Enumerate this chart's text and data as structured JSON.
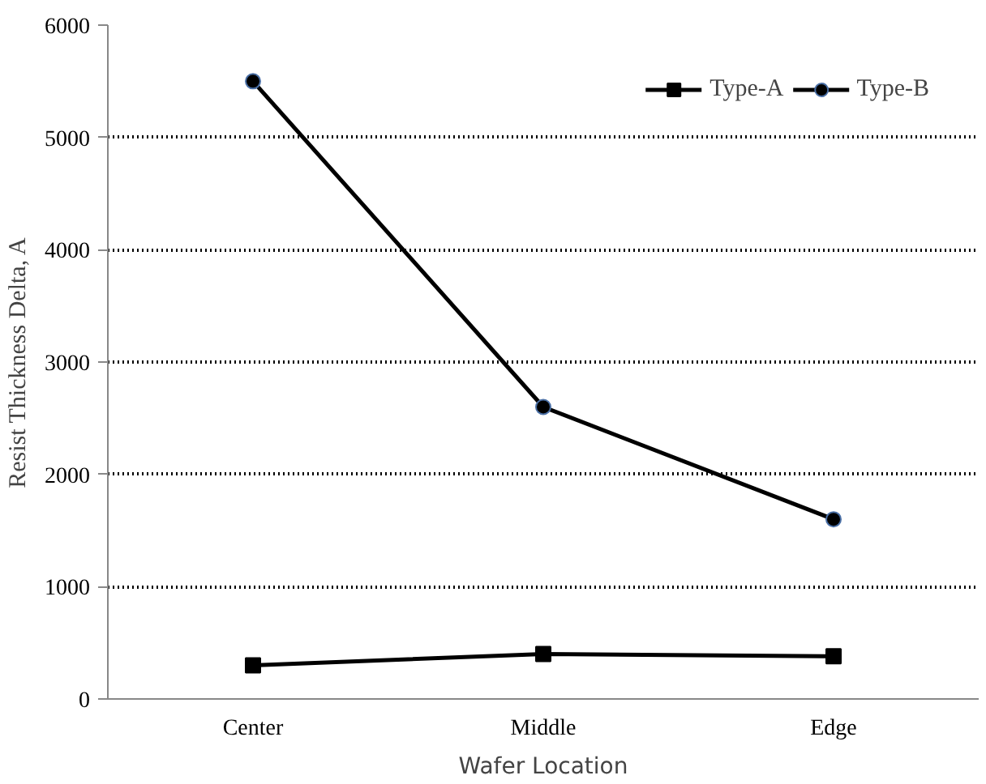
{
  "chart_data": {
    "type": "line",
    "xlabel": "Wafer Location",
    "ylabel": "Resist Thickness Delta, A",
    "categories": [
      "Center",
      "Middle",
      "Edge"
    ],
    "series": [
      {
        "name": "Type-A",
        "color": "#000000",
        "marker": "square",
        "values": [
          300,
          400,
          380
        ]
      },
      {
        "name": "Type-B",
        "color": "#000000",
        "marker": "circle",
        "values": [
          5500,
          2600,
          1600
        ]
      }
    ],
    "ylim": [
      0,
      6000
    ],
    "yticks": [
      0,
      1000,
      2000,
      3000,
      4000,
      5000,
      6000
    ],
    "grid": "y",
    "legend": "top right",
    "line_style": "solid"
  }
}
